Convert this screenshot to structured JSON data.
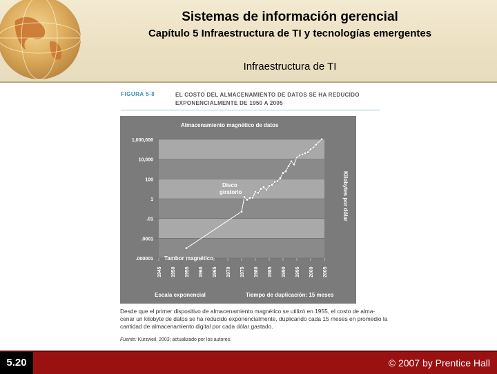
{
  "header": {
    "title": "Sistemas de información gerencial",
    "subtitle": "Capítulo 5 Infraestructura de TI y tecnologías emergentes",
    "section": "Infraestructura de TI"
  },
  "figure": {
    "label": "FIGURA 5-8",
    "title_line1": "EL COSTO DEL ALMACENAMIENTO DE DATOS SE HA REDUCIDO",
    "title_line2": "EXPONENCIALMENTE DE 1950 A 2005",
    "caption_line1": "Desde que el primer dispositivo de almacenamiento magnético se utilizó en 1955, el costo de alma-",
    "caption_line2": "cenar un kilobyte de datos se ha reducido exponencialmente, duplicando cada 15 meses en promedio la",
    "caption_line3": "cantidad de almacenamiento digital por cada dólar gastado.",
    "source_label": "Fuente:",
    "source_rest": " Kurzweil, 2003; actualizado por los autores."
  },
  "chart_data": {
    "type": "line",
    "title": "Almacenamiento magnético de datos",
    "ylabel": "Kilobytes por dólar",
    "xlabel_left": "Escala exponencial",
    "xlabel_right": "Tiempo de duplicación: 15 meses",
    "yscale": "log",
    "ylim": [
      1e-06,
      1000000
    ],
    "yticks": [
      {
        "v": 1000000,
        "label": "1,000,000"
      },
      {
        "v": 10000,
        "label": "10,000"
      },
      {
        "v": 100,
        "label": "100"
      },
      {
        "v": 1,
        "label": "1"
      },
      {
        "v": 0.01,
        "label": ".01"
      },
      {
        "v": 0.0001,
        "label": ".0001"
      },
      {
        "v": 1e-06,
        "label": ".000001"
      }
    ],
    "xlim": [
      1945,
      2005
    ],
    "xticks": [
      "1945",
      "1950",
      "1955",
      "1960",
      "1965",
      "1970",
      "1975",
      "1980",
      "1985",
      "1990",
      "1995",
      "2000",
      "2005"
    ],
    "annotations": [
      {
        "text_line1": "Disco",
        "text_line2": "giratorio",
        "x": 1972,
        "y": 2
      },
      {
        "text": "Tambor magnético",
        "x": 1946,
        "y": 1.8e-06
      }
    ],
    "series": [
      {
        "points": [
          [
            1955,
            1e-05
          ],
          [
            1975,
            0.05
          ],
          [
            1976,
            1.5
          ],
          [
            1977,
            0.8
          ],
          [
            1978,
            1.2
          ],
          [
            1979,
            1.3
          ],
          [
            1980,
            5
          ],
          [
            1981,
            4
          ],
          [
            1982,
            10
          ],
          [
            1983,
            15
          ],
          [
            1984,
            8
          ],
          [
            1985,
            20
          ],
          [
            1986,
            25
          ],
          [
            1987,
            50
          ],
          [
            1988,
            60
          ],
          [
            1989,
            120
          ],
          [
            1990,
            400
          ],
          [
            1991,
            600
          ],
          [
            1992,
            2000
          ],
          [
            1993,
            6000
          ],
          [
            1994,
            3000
          ],
          [
            1995,
            15000
          ],
          [
            1996,
            25000
          ],
          [
            1997,
            30000
          ],
          [
            1998,
            40000
          ],
          [
            1999,
            50000
          ],
          [
            2000,
            100000
          ],
          [
            2001,
            150000
          ],
          [
            2002,
            300000
          ],
          [
            2004,
            1000000
          ]
        ]
      }
    ]
  },
  "footer": {
    "slide_number": "5.20",
    "copyright": "© 2007 by Prentice Hall"
  },
  "colors": {
    "footer_bg": "#9a1111",
    "chart_bg": "#7b7b7b",
    "band": "#a8a8a8",
    "figure_label": "#3b8fb5"
  }
}
